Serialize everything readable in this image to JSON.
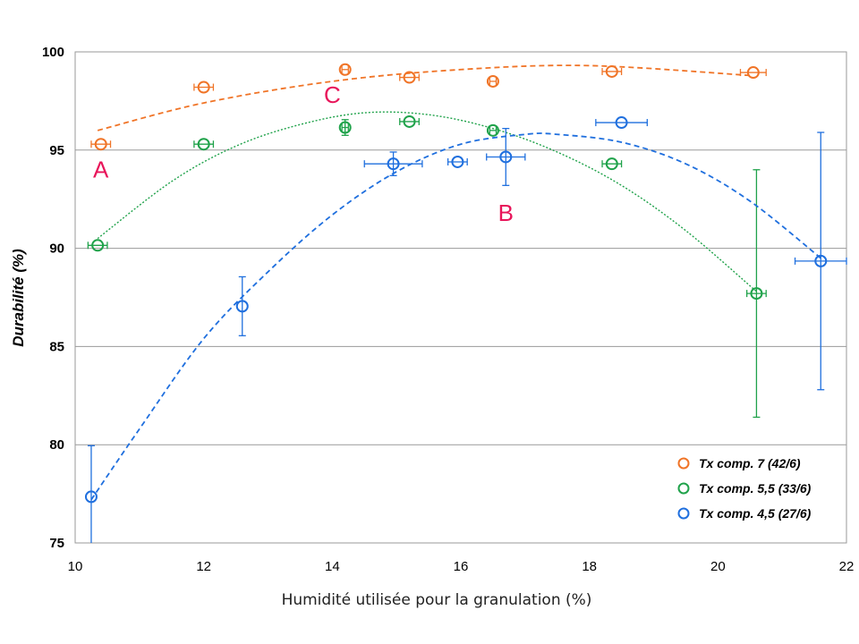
{
  "chart_data": {
    "type": "scatter",
    "xlabel": "Humidité utilisée pour la granulation (%)",
    "ylabel": "Durabilité (%)",
    "xlim": [
      10,
      22
    ],
    "ylim": [
      75,
      100
    ],
    "xticks": [
      "10",
      "12",
      "14",
      "16",
      "18",
      "20",
      "22"
    ],
    "yticks": [
      "75",
      "80",
      "85",
      "90",
      "95",
      "100"
    ],
    "grid": "horizontal",
    "legend_position": "bottom-right",
    "series": [
      {
        "name": "Tx comp. 7 (42/6)",
        "color": "#f07427",
        "points": [
          {
            "x": 10.4,
            "y": 95.3,
            "xerr": 0.15,
            "yerr": 0
          },
          {
            "x": 12.0,
            "y": 98.2,
            "xerr": 0.15,
            "yerr": 0
          },
          {
            "x": 14.2,
            "y": 99.1,
            "xerr": 0.05,
            "yerr": 0
          },
          {
            "x": 15.2,
            "y": 98.7,
            "xerr": 0.15,
            "yerr": 0
          },
          {
            "x": 16.5,
            "y": 98.5,
            "xerr": 0.05,
            "yerr": 0
          },
          {
            "x": 18.35,
            "y": 99.0,
            "xerr": 0.15,
            "yerr": 0
          },
          {
            "x": 20.55,
            "y": 98.95,
            "xerr": 0.2,
            "yerr": 0
          }
        ],
        "trend": [
          [
            10.35,
            96.0
          ],
          [
            12,
            97.4
          ],
          [
            14,
            98.5
          ],
          [
            16,
            99.1
          ],
          [
            18,
            99.3
          ],
          [
            20.5,
            98.8
          ]
        ]
      },
      {
        "name": "Tx comp. 5,5 (33/6)",
        "color": "#1fa24a",
        "points": [
          {
            "x": 10.35,
            "y": 90.15,
            "xerr": 0.15,
            "yerr": 0
          },
          {
            "x": 12.0,
            "y": 95.3,
            "xerr": 0.15,
            "yerr": 0
          },
          {
            "x": 14.2,
            "y": 96.15,
            "xerr": 0.05,
            "yerr": 0.4
          },
          {
            "x": 15.2,
            "y": 96.45,
            "xerr": 0.15,
            "yerr": 0
          },
          {
            "x": 16.5,
            "y": 96.0,
            "xerr": 0.05,
            "yerr": 0
          },
          {
            "x": 18.35,
            "y": 94.3,
            "xerr": 0.15,
            "yerr": 0
          },
          {
            "x": 20.6,
            "y": 87.7,
            "xerr": 0.15,
            "yerr": 6.3
          }
        ],
        "trend": [
          [
            10.35,
            90.5
          ],
          [
            11.5,
            93.4
          ],
          [
            12.5,
            95.2
          ],
          [
            13.5,
            96.3
          ],
          [
            14.5,
            96.9
          ],
          [
            15.5,
            96.8
          ],
          [
            16.5,
            96.1
          ],
          [
            17.5,
            94.9
          ],
          [
            18.5,
            93.2
          ],
          [
            19.5,
            90.9
          ],
          [
            20.6,
            87.8
          ]
        ]
      },
      {
        "name": "Tx comp. 4,5 (27/6)",
        "color": "#1f6fde",
        "points": [
          {
            "x": 10.25,
            "y": 77.35,
            "xerr": 0,
            "yerr": 2.6
          },
          {
            "x": 12.6,
            "y": 87.05,
            "xerr": 0,
            "yerr": 1.5
          },
          {
            "x": 14.95,
            "y": 94.3,
            "xerr": 0.45,
            "yerr": 0.6
          },
          {
            "x": 15.95,
            "y": 94.4,
            "xerr": 0.15,
            "yerr": 0
          },
          {
            "x": 16.7,
            "y": 94.65,
            "xerr": 0.3,
            "yerr": 1.45
          },
          {
            "x": 18.5,
            "y": 96.4,
            "xerr": 0.4,
            "yerr": 0
          },
          {
            "x": 21.6,
            "y": 89.35,
            "xerr": 0.4,
            "yerr": 6.55
          }
        ],
        "trend": [
          [
            10.25,
            77.2
          ],
          [
            11,
            80.8
          ],
          [
            12,
            85.4
          ],
          [
            13,
            88.8
          ],
          [
            14,
            91.7
          ],
          [
            15,
            93.9
          ],
          [
            16,
            95.3
          ],
          [
            17,
            95.8
          ],
          [
            17.5,
            95.8
          ],
          [
            18.5,
            95.4
          ],
          [
            19.5,
            94.3
          ],
          [
            20.5,
            92.4
          ],
          [
            21.6,
            89.5
          ]
        ]
      }
    ],
    "annotations": [
      {
        "text": "A",
        "x": 10.4,
        "y": 93.6
      },
      {
        "text": "B",
        "x": 16.7,
        "y": 91.4
      },
      {
        "text": "C",
        "x": 14.0,
        "y": 97.4
      }
    ]
  }
}
